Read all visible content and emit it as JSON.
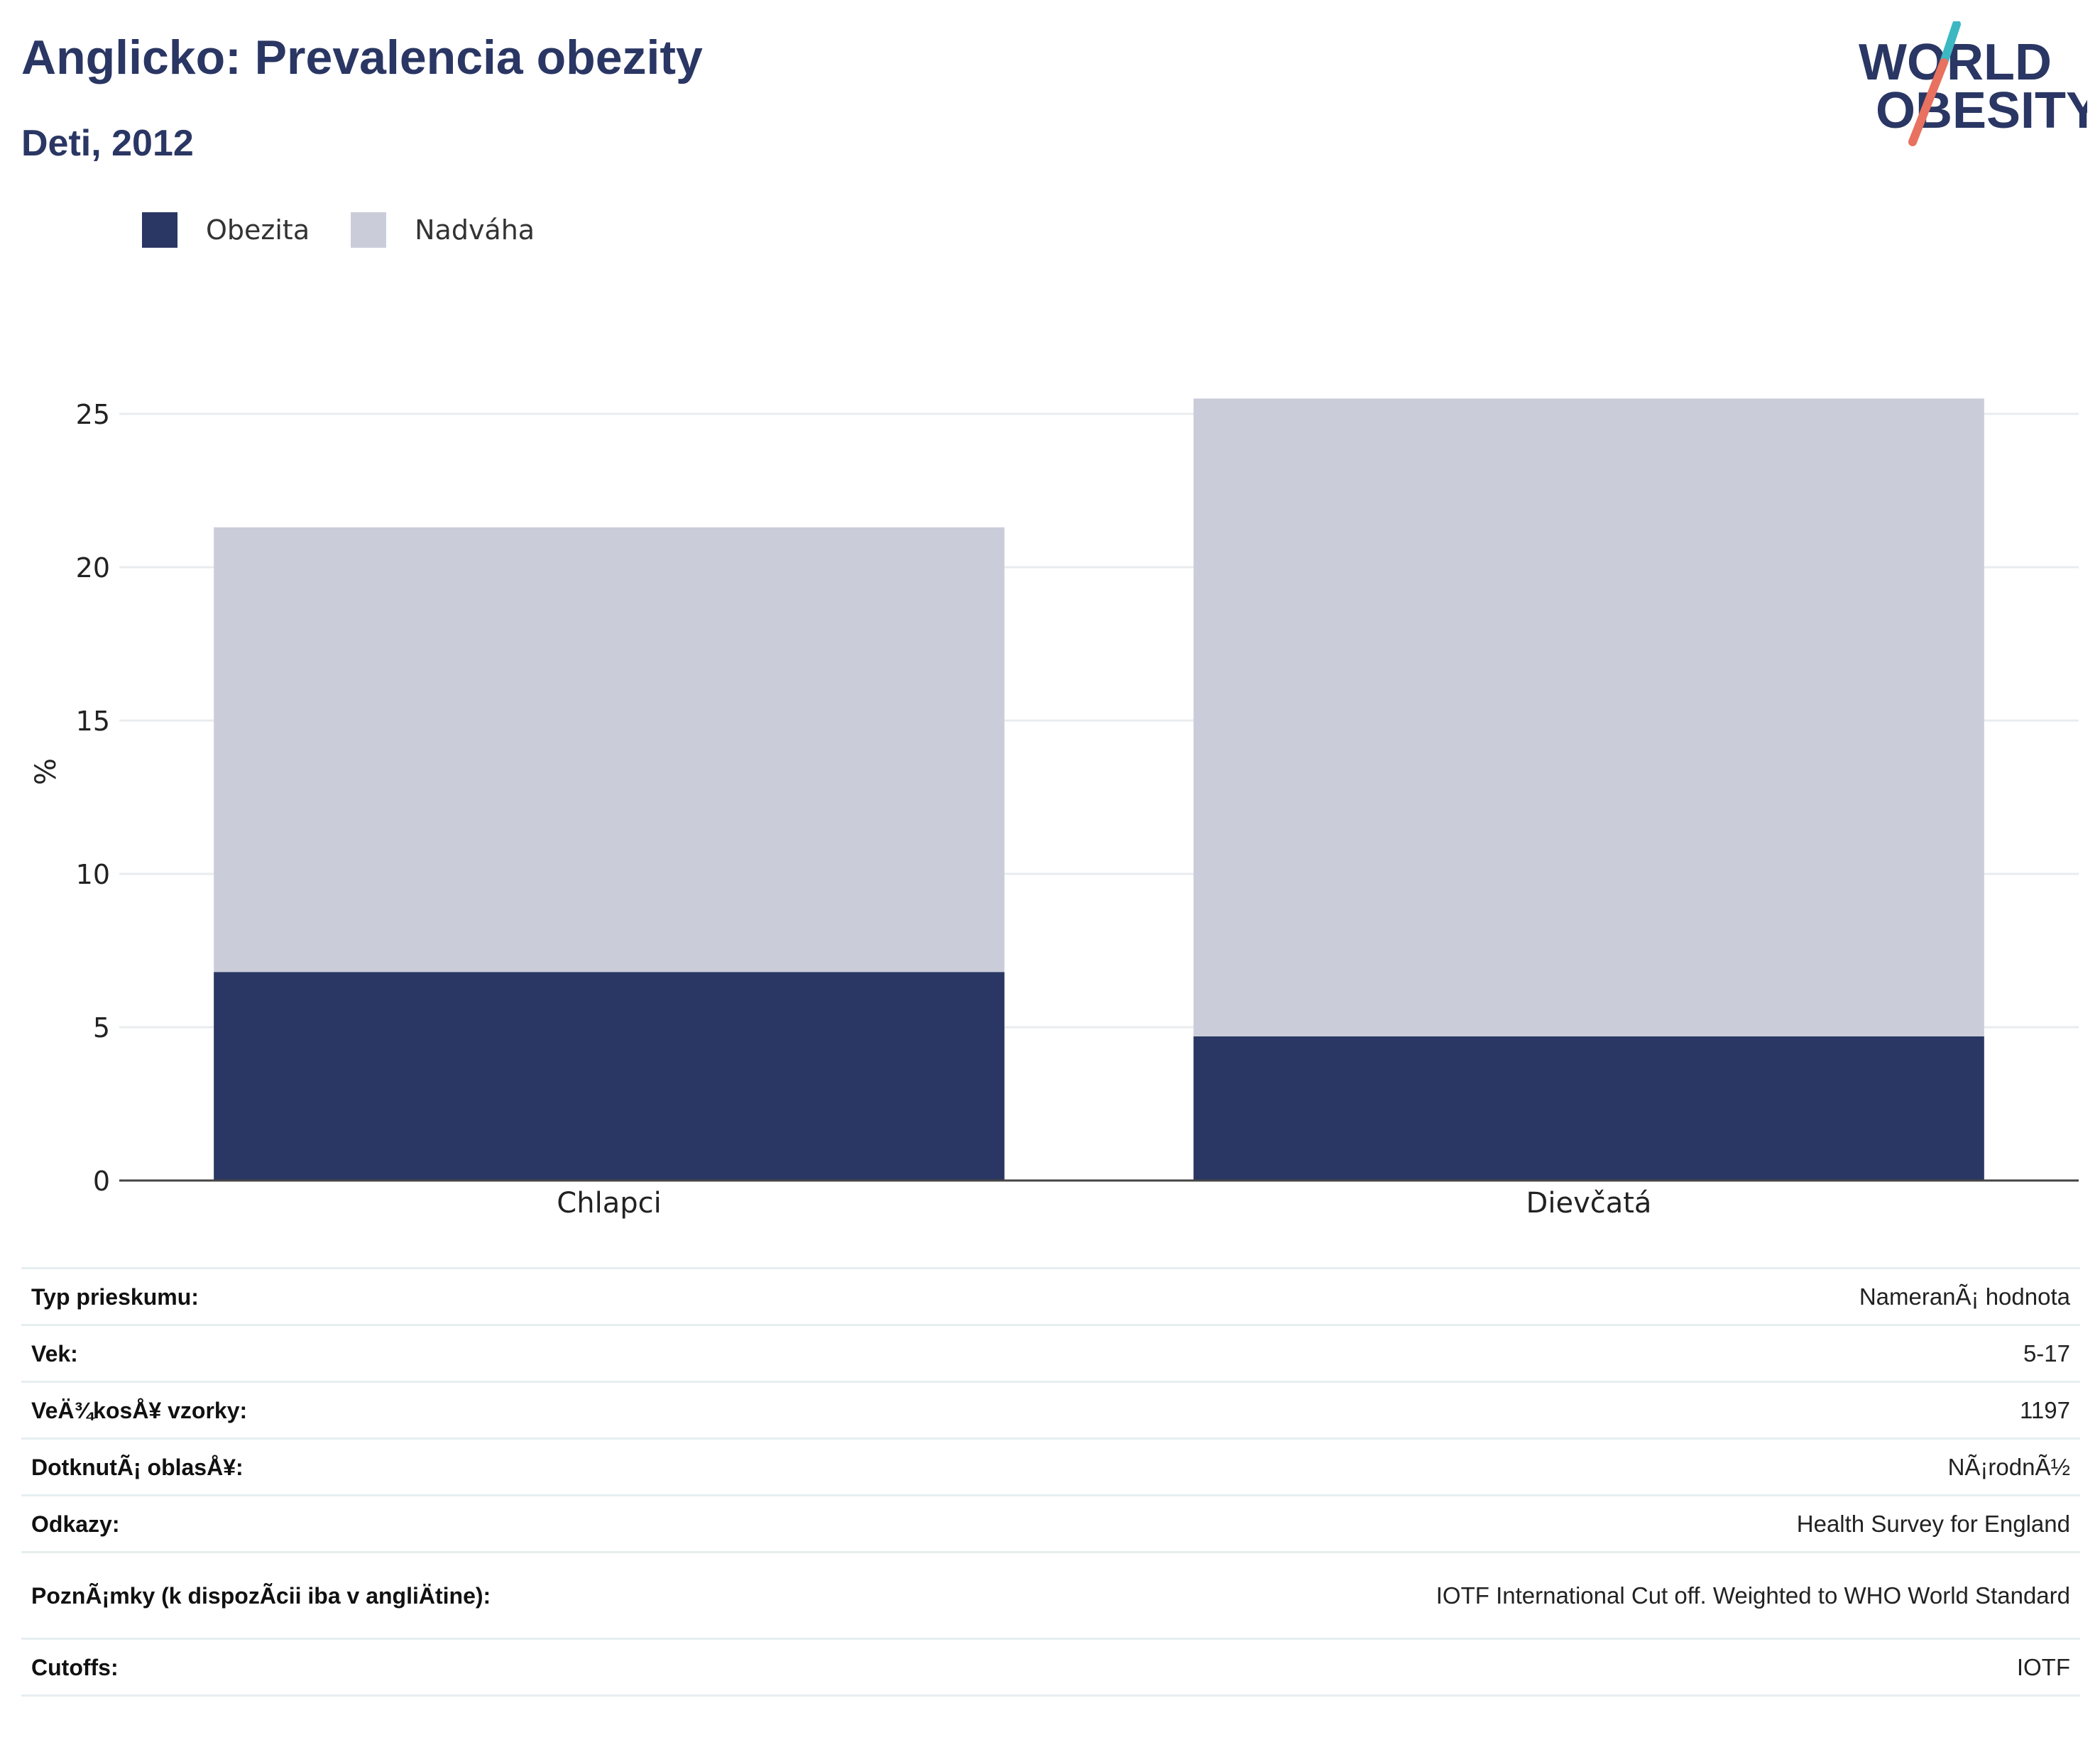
{
  "header": {
    "title": "Anglicko: Prevalencia obezity",
    "subtitle": "Deti, 2012"
  },
  "logo": {
    "line1": "WORLD",
    "line2": "OBESITY",
    "colors": {
      "text": "#2a3663",
      "slash_top": "#3cb8c2",
      "slash_bottom": "#e8715f"
    }
  },
  "legend": [
    {
      "label": "Obezita",
      "color": "#2a3663"
    },
    {
      "label": "Nadváha",
      "color": "#cacdd9"
    }
  ],
  "chart_data": {
    "type": "bar",
    "stacked": true,
    "categories": [
      "Chlapci",
      "Dievčatá"
    ],
    "series": [
      {
        "name": "Obezita",
        "values": [
          6.8,
          4.7
        ],
        "color": "#2a3663"
      },
      {
        "name": "Nadváha",
        "values": [
          14.5,
          20.8
        ],
        "color": "#cacdd9"
      }
    ],
    "ylabel": "%",
    "ylim": [
      0,
      27
    ],
    "yticks": [
      0,
      5,
      10,
      15,
      20,
      25
    ],
    "grid": true,
    "legend_position": "top-left"
  },
  "details": [
    {
      "label": "Typ prieskumu:",
      "value": "NameranÃ¡ hodnota"
    },
    {
      "label": "Vek:",
      "value": "5-17"
    },
    {
      "label": "VeÄ¾kosÅ¥ vzorky:",
      "value": "1197"
    },
    {
      "label": "DotknutÃ¡ oblasÅ¥:",
      "value": "NÃ¡rodnÃ½"
    },
    {
      "label": "Odkazy:",
      "value": "Health Survey for England"
    },
    {
      "label": "PoznÃ¡mky (k dispozÃcii iba v angliÄtine):",
      "value": "IOTF International Cut off. Weighted to WHO World Standard"
    },
    {
      "label": "Cutoffs:",
      "value": "IOTF"
    }
  ]
}
